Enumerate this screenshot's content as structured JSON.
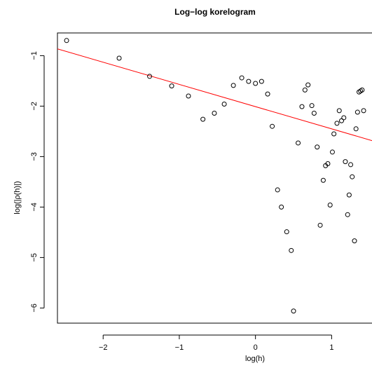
{
  "chart_data": {
    "type": "scatter",
    "title": "Log−log korelogram",
    "xlabel": "log(h)",
    "ylabel": "log(|ρ(h)|)",
    "xlim": [
      -2.6,
      1.53
    ],
    "ylim": [
      -6.3,
      -0.55
    ],
    "x_ticks": [
      -2,
      -1,
      0,
      1
    ],
    "x_tick_labels": [
      "−2",
      "−1",
      "0",
      "1"
    ],
    "y_ticks": [
      -6,
      -5,
      -4,
      -3,
      -2,
      -1
    ],
    "y_tick_labels": [
      "−6",
      "−5",
      "−4",
      "−3",
      "−2",
      "−1"
    ],
    "grid": false,
    "point_color": "#000000",
    "fit_line": {
      "intercept": -2.01,
      "slope": -0.44,
      "color": "#ff0000"
    },
    "points": [
      [
        -2.48,
        -0.7
      ],
      [
        -1.79,
        -1.05
      ],
      [
        -1.39,
        -1.41
      ],
      [
        -1.1,
        -1.6
      ],
      [
        -0.88,
        -1.8
      ],
      [
        -0.69,
        -2.26
      ],
      [
        -0.54,
        -2.14
      ],
      [
        -0.41,
        -1.96
      ],
      [
        -0.29,
        -1.59
      ],
      [
        -0.18,
        -1.44
      ],
      [
        -0.09,
        -1.51
      ],
      [
        0.0,
        -1.55
      ],
      [
        0.08,
        -1.51
      ],
      [
        0.16,
        -1.76
      ],
      [
        0.22,
        -2.4
      ],
      [
        0.29,
        -3.66
      ],
      [
        0.34,
        -4.0
      ],
      [
        0.41,
        -4.49
      ],
      [
        0.47,
        -4.86
      ],
      [
        0.5,
        -6.06
      ],
      [
        0.56,
        -2.73
      ],
      [
        0.61,
        -2.01
      ],
      [
        0.65,
        -1.68
      ],
      [
        0.69,
        -1.58
      ],
      [
        0.74,
        -1.99
      ],
      [
        0.77,
        -2.14
      ],
      [
        0.81,
        -2.81
      ],
      [
        0.85,
        -4.36
      ],
      [
        0.89,
        -3.47
      ],
      [
        0.92,
        -3.18
      ],
      [
        0.95,
        -3.14
      ],
      [
        0.98,
        -3.96
      ],
      [
        1.01,
        -2.91
      ],
      [
        1.03,
        -2.55
      ],
      [
        1.07,
        -2.34
      ],
      [
        1.1,
        -2.09
      ],
      [
        1.13,
        -2.29
      ],
      [
        1.16,
        -2.23
      ],
      [
        1.18,
        -3.1
      ],
      [
        1.21,
        -4.15
      ],
      [
        1.23,
        -3.76
      ],
      [
        1.25,
        -3.16
      ],
      [
        1.27,
        -3.4
      ],
      [
        1.3,
        -4.67
      ],
      [
        1.32,
        -2.45
      ],
      [
        1.34,
        -2.12
      ],
      [
        1.36,
        -1.72
      ],
      [
        1.38,
        -1.7
      ],
      [
        1.4,
        -1.68
      ],
      [
        1.42,
        -2.09
      ]
    ]
  }
}
